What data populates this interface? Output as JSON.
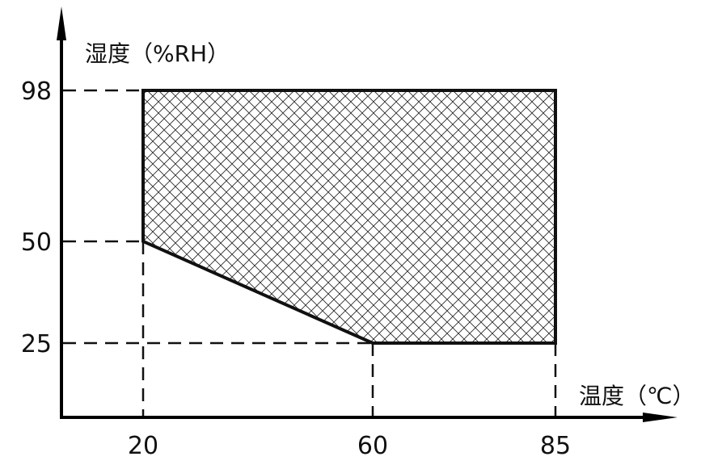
{
  "chart_data": {
    "type": "area",
    "title": "",
    "xlabel": "温度（℃）",
    "ylabel": "湿度（%RH）",
    "x_ticks": [
      20,
      60,
      85
    ],
    "y_ticks": [
      25,
      50,
      98
    ],
    "grid": false,
    "fill": "crosshatch",
    "region": {
      "x": [
        20,
        85,
        85,
        60,
        20
      ],
      "y": [
        98,
        98,
        25,
        25,
        50
      ]
    },
    "guide_lines": "dashed"
  }
}
